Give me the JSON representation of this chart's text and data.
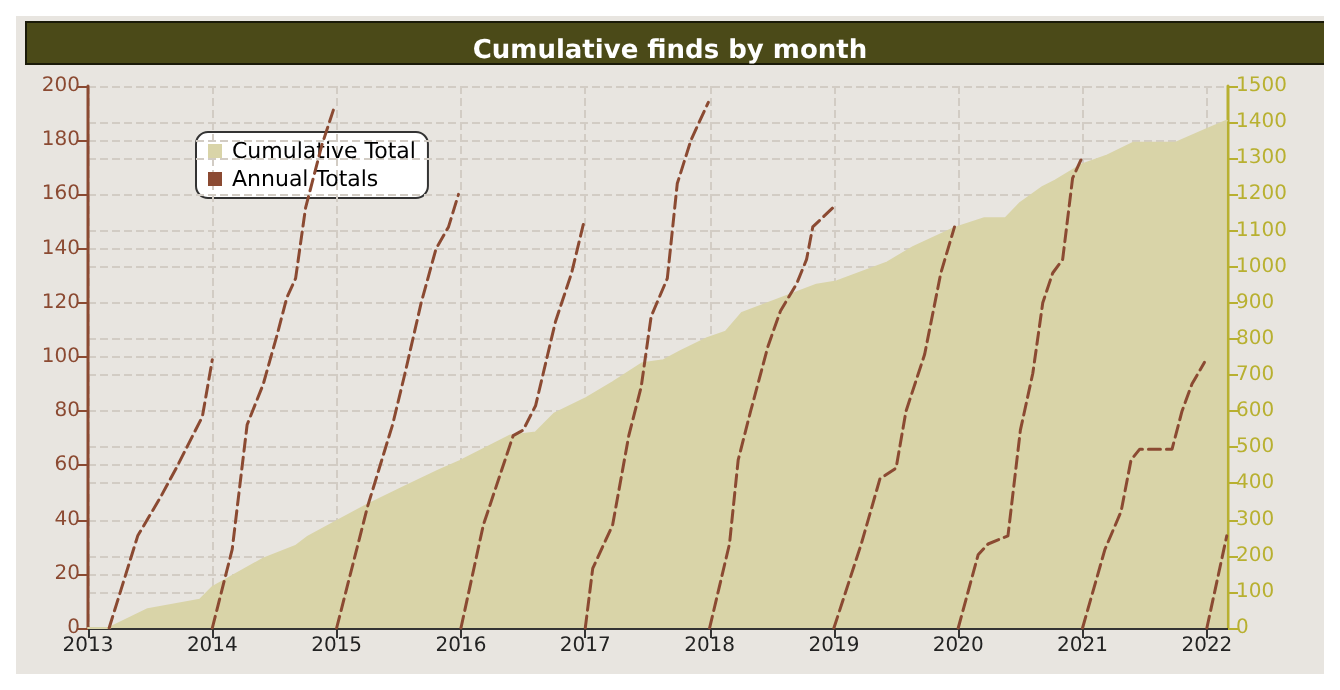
{
  "chart_data": {
    "type": "area",
    "title": "Cumulative finds by month",
    "xlim": [
      2013,
      2022.17
    ],
    "xticks": [
      2013,
      2014,
      2015,
      2016,
      2017,
      2018,
      2019,
      2020,
      2021,
      2022
    ],
    "ylim": [
      0,
      200
    ],
    "yticks": [
      0,
      20,
      40,
      60,
      80,
      100,
      120,
      140,
      160,
      180,
      200
    ],
    "y2lim": [
      0,
      1500
    ],
    "y2ticks": [
      0,
      100,
      200,
      300,
      400,
      500,
      600,
      700,
      800,
      900,
      1000,
      1100,
      1200,
      1300,
      1400,
      1500
    ],
    "grid": true,
    "legend": "top left",
    "marker": "none",
    "series": [
      {
        "name": "Cumulative Total",
        "axis": "y2",
        "color": "#d9d4a8",
        "x": [
          2013,
          2013.17,
          2013.48,
          2013.9,
          2014,
          2014.41,
          2014.67,
          2014.77,
          2015,
          2015.24,
          2015.55,
          2015.82,
          2015.99,
          2016.39,
          2016.6,
          2016.75,
          2017.01,
          2017.22,
          2017.46,
          2017.63,
          2017.77,
          2017.98,
          2018.13,
          2018.26,
          2018.6,
          2018.86,
          2019.02,
          2019.43,
          2019.64,
          2019.97,
          2020.21,
          2020.38,
          2020.5,
          2020.68,
          2020.78,
          2020.99,
          2021.2,
          2021.41,
          2021.75,
          2021.98,
          2022.16
        ],
        "values": [
          0,
          0,
          52,
          78,
          113,
          192,
          227,
          253,
          296,
          340,
          392,
          436,
          462,
          532,
          541,
          593,
          637,
          680,
          733,
          741,
          767,
          802,
          820,
          872,
          916,
          950,
          959,
          1012,
          1055,
          1107,
          1134,
          1134,
          1177,
          1221,
          1238,
          1282,
          1308,
          1343,
          1343,
          1378,
          1404
        ]
      },
      {
        "name": "Annual Totals",
        "type": "line",
        "line_style": "dashed",
        "color": "#8b4a32",
        "x": [
          2013.17,
          2013.4,
          2013.58,
          2013.71,
          2013.92,
          2014
        ],
        "values": [
          0,
          34,
          48,
          59,
          78,
          99
        ]
      },
      {
        "type": "line",
        "line_style": "dashed",
        "color": "#8b4a32",
        "x": [
          2014,
          2014.16,
          2014.28,
          2014.41,
          2014.52,
          2014.6,
          2014.67,
          2014.75,
          2014.88,
          2014.98
        ],
        "values": [
          0,
          29,
          75,
          90,
          108,
          122,
          129,
          155,
          178,
          192
        ]
      },
      {
        "type": "line",
        "line_style": "dashed",
        "color": "#8b4a32",
        "x": [
          2015,
          2015.25,
          2015.45,
          2015.55,
          2015.68,
          2015.8,
          2015.9,
          2015.98
        ],
        "values": [
          0,
          45,
          75,
          94,
          120,
          140,
          148,
          160
        ]
      },
      {
        "type": "line",
        "line_style": "dashed",
        "color": "#8b4a32",
        "x": [
          2016,
          2016.18,
          2016.42,
          2016.5,
          2016.6,
          2016.76,
          2016.89,
          2016.99
        ],
        "values": [
          0,
          38,
          71,
          73,
          82,
          113,
          131,
          150
        ]
      },
      {
        "type": "line",
        "line_style": "dashed",
        "color": "#8b4a32",
        "x": [
          2017,
          2017.06,
          2017.22,
          2017.35,
          2017.45,
          2017.53,
          2017.66,
          2017.74,
          2017.85,
          2017.99
        ],
        "values": [
          0,
          22,
          38,
          71,
          89,
          115,
          129,
          164,
          180,
          194
        ]
      },
      {
        "type": "line",
        "line_style": "dashed",
        "color": "#8b4a32",
        "x": [
          2018,
          2018.16,
          2018.23,
          2018.33,
          2018.47,
          2018.57,
          2018.7,
          2018.78,
          2018.83,
          2018.99
        ],
        "values": [
          0,
          31,
          62,
          80,
          104,
          117,
          127,
          136,
          148,
          155
        ]
      },
      {
        "type": "line",
        "line_style": "dashed",
        "color": "#8b4a32",
        "x": [
          2019,
          2019.22,
          2019.37,
          2019.5,
          2019.58,
          2019.73,
          2019.86,
          2019.97
        ],
        "values": [
          0,
          31,
          55,
          59,
          80,
          101,
          131,
          148
        ]
      },
      {
        "type": "line",
        "line_style": "dashed",
        "color": "#8b4a32",
        "x": [
          2020,
          2020.16,
          2020.24,
          2020.4,
          2020.5,
          2020.6,
          2020.68,
          2020.76,
          2020.84,
          2020.92,
          2021
        ],
        "values": [
          0,
          27,
          31,
          34,
          73,
          94,
          120,
          131,
          136,
          166,
          174
        ]
      },
      {
        "type": "line",
        "line_style": "dashed",
        "color": "#8b4a32",
        "x": [
          2021,
          2021.18,
          2021.31,
          2021.39,
          2021.46,
          2021.72,
          2021.8,
          2021.88,
          2021.98
        ],
        "values": [
          0,
          29,
          43,
          62,
          66,
          66,
          80,
          90,
          98
        ]
      },
      {
        "type": "line",
        "line_style": "dashed",
        "color": "#8b4a32",
        "x": [
          2022,
          2022.16
        ],
        "values": [
          0,
          34
        ]
      }
    ]
  }
}
